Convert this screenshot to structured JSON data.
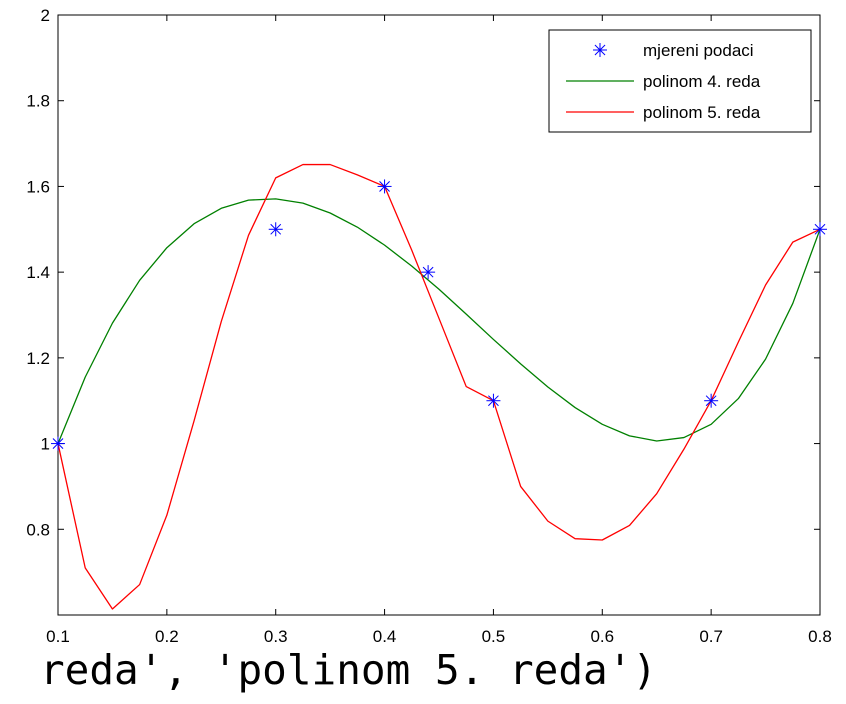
{
  "chart_data": {
    "type": "line",
    "title": "",
    "xlabel": "",
    "ylabel": "",
    "xlim": [
      0.1,
      0.8
    ],
    "ylim": [
      0.6,
      2.0
    ],
    "grid": false,
    "legend_position": "top-right",
    "x_ticks": [
      "0.1",
      "0.2",
      "0.3",
      "0.4",
      "0.5",
      "0.6",
      "0.7",
      "0.8"
    ],
    "y_ticks": [
      "0.8",
      "1",
      "1.2",
      "1.4",
      "1.6",
      "1.8",
      "2"
    ],
    "series": [
      {
        "name": "mjereni podaci",
        "style": "markers",
        "marker": "asterisk",
        "color": "#0000ff",
        "x": [
          0.1,
          0.3,
          0.4,
          0.44,
          0.5,
          0.7,
          0.8
        ],
        "y": [
          1.0,
          1.5,
          1.6,
          1.4,
          1.1,
          1.1,
          1.5
        ]
      },
      {
        "name": "polinom 4. reda",
        "style": "line",
        "color": "#008000",
        "x": [
          0.1,
          0.125,
          0.15,
          0.175,
          0.2,
          0.225,
          0.25,
          0.275,
          0.3,
          0.325,
          0.35,
          0.375,
          0.4,
          0.425,
          0.45,
          0.475,
          0.5,
          0.525,
          0.55,
          0.575,
          0.6,
          0.625,
          0.65,
          0.675,
          0.7,
          0.725,
          0.75,
          0.775,
          0.8
        ],
        "y": [
          1.0,
          1.155,
          1.281,
          1.381,
          1.457,
          1.513,
          1.549,
          1.568,
          1.571,
          1.561,
          1.538,
          1.505,
          1.463,
          1.414,
          1.36,
          1.302,
          1.243,
          1.186,
          1.132,
          1.084,
          1.045,
          1.018,
          1.006,
          1.014,
          1.045,
          1.105,
          1.197,
          1.327,
          1.5
        ]
      },
      {
        "name": "polinom 5. reda",
        "style": "line",
        "color": "#ff0000",
        "x": [
          0.1,
          0.125,
          0.15,
          0.175,
          0.2,
          0.225,
          0.25,
          0.275,
          0.3,
          0.325,
          0.35,
          0.375,
          0.4,
          0.425,
          0.45,
          0.475,
          0.5,
          0.525,
          0.55,
          0.575,
          0.6,
          0.625,
          0.65,
          0.675,
          0.7,
          0.725,
          0.75,
          0.775,
          0.8
        ],
        "y": [
          1.0,
          0.71,
          0.614,
          0.671,
          0.833,
          1.053,
          1.285,
          1.486,
          1.62,
          1.651,
          1.651,
          1.627,
          1.6,
          1.451,
          1.292,
          1.133,
          1.1,
          0.9,
          0.819,
          0.778,
          0.775,
          0.809,
          0.883,
          0.987,
          1.1,
          1.237,
          1.37,
          1.47,
          1.5
        ]
      }
    ]
  },
  "code_snippet": "reda', 'polinom 5. reda')"
}
